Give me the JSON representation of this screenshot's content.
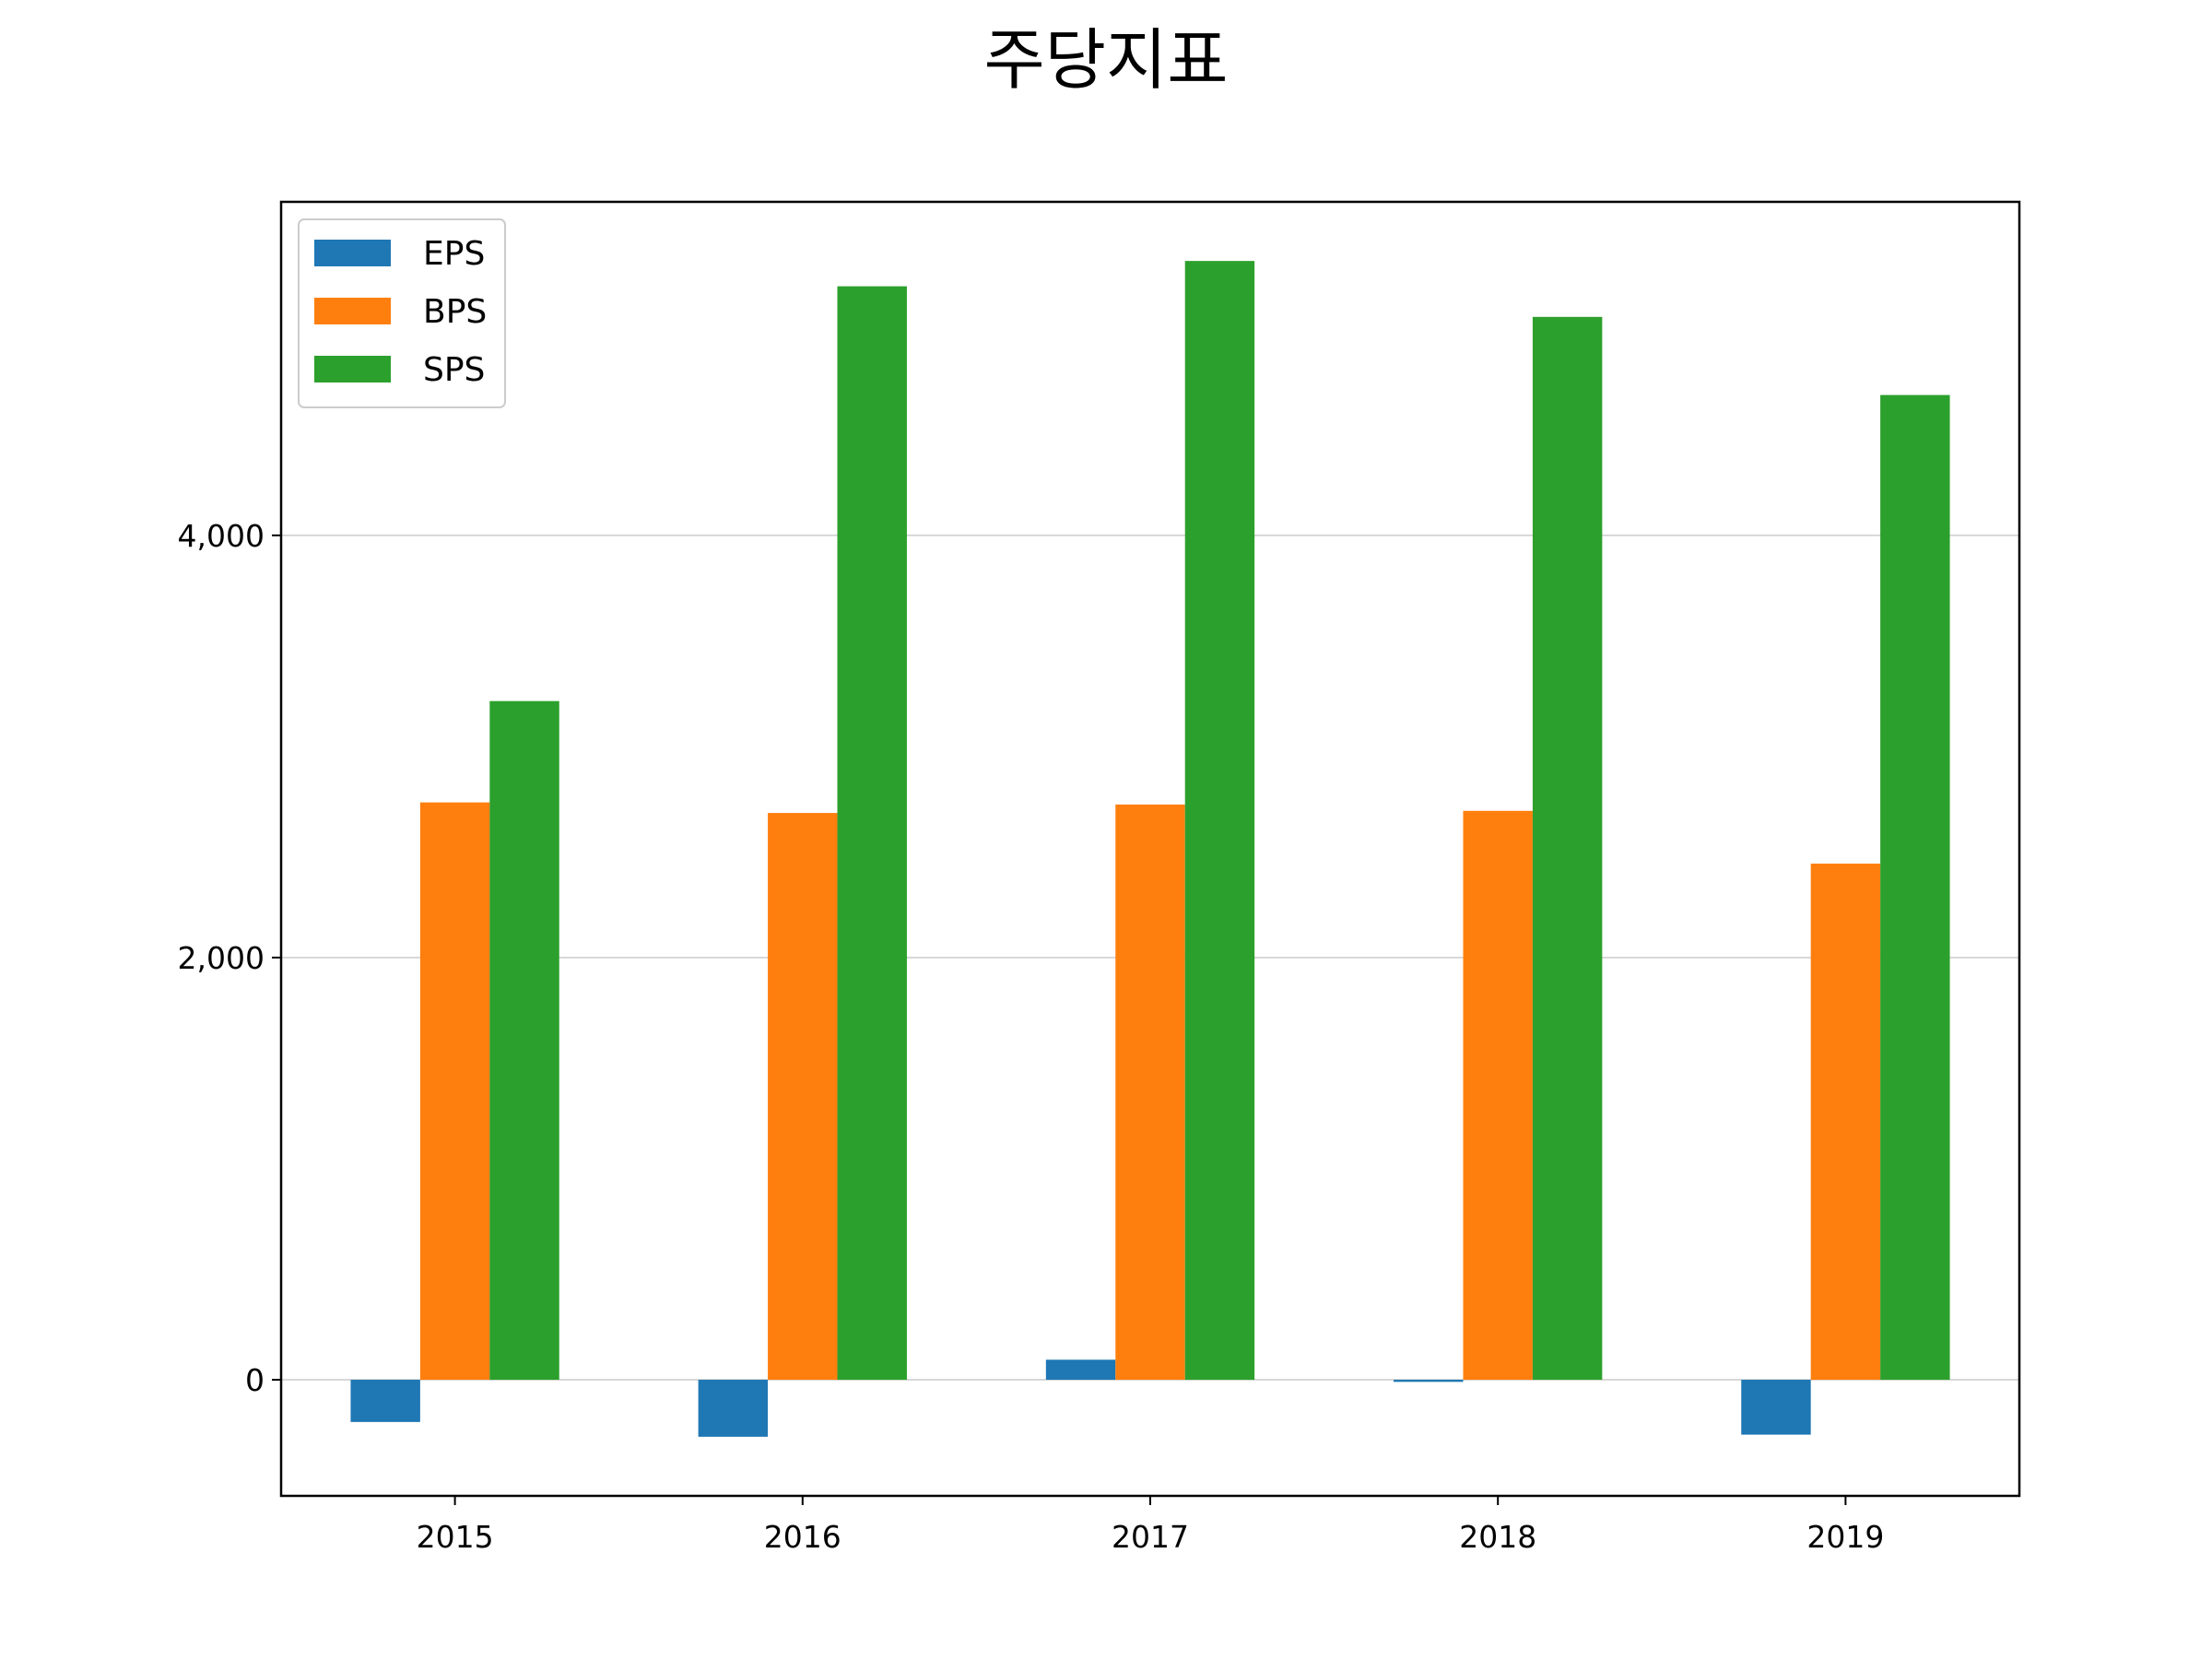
{
  "chart_data": {
    "type": "bar",
    "title": "주당지표",
    "xlabel": "",
    "ylabel": "",
    "categories": [
      "2015",
      "2016",
      "2017",
      "2018",
      "2019"
    ],
    "series": [
      {
        "name": "EPS",
        "color": "#1f77b4",
        "values": [
          -200,
          -270,
          95,
          -10,
          -260
        ]
      },
      {
        "name": "BPS",
        "color": "#ff7f0e",
        "values": [
          2735,
          2685,
          2725,
          2695,
          2445
        ]
      },
      {
        "name": "SPS",
        "color": "#2ca02c",
        "values": [
          3215,
          5180,
          5300,
          5035,
          4665
        ]
      }
    ],
    "ylim": [
      -550,
      5580
    ],
    "yticks": [
      0,
      2000,
      4000
    ],
    "ytick_labels": [
      "0",
      "2,000",
      "4,000"
    ],
    "grid": true,
    "legend_position": "top-left"
  }
}
